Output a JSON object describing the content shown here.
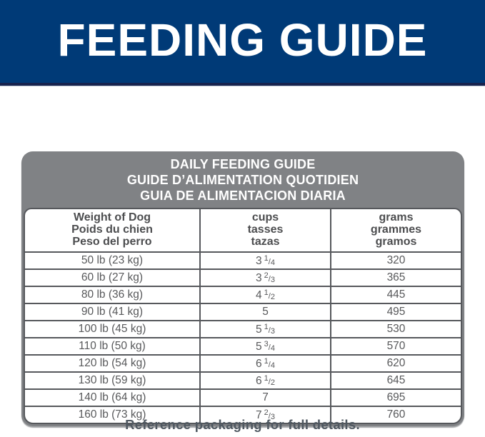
{
  "banner": {
    "title": "FEEDING GUIDE"
  },
  "table": {
    "title_lines": {
      "en": "DAILY FEEDING GUIDE",
      "fr": "GUIDE D’ALIMENTATION QUOTIDIEN",
      "es": "GUIA DE ALIMENTACION DIARIA"
    },
    "columns": [
      {
        "lines": [
          "Weight of Dog",
          "Poids du chien",
          "Peso del perro"
        ]
      },
      {
        "lines": [
          "cups",
          "tasses",
          "tazas"
        ]
      },
      {
        "lines": [
          "grams",
          "grammes",
          "gramos"
        ]
      }
    ],
    "rows": [
      {
        "weight": "50 lb (23 kg)",
        "cups": {
          "whole": "3",
          "num": "1",
          "den": "4"
        },
        "grams": "320"
      },
      {
        "weight": "60 lb (27 kg)",
        "cups": {
          "whole": "3",
          "num": "2",
          "den": "3"
        },
        "grams": "365"
      },
      {
        "weight": "80 lb (36 kg)",
        "cups": {
          "whole": "4",
          "num": "1",
          "den": "2"
        },
        "grams": "445"
      },
      {
        "weight": "90 lb (41 kg)",
        "cups": {
          "whole": "5"
        },
        "grams": "495"
      },
      {
        "weight": "100 lb (45 kg)",
        "cups": {
          "whole": "5",
          "num": "1",
          "den": "3"
        },
        "grams": "530"
      },
      {
        "weight": "110 lb (50 kg)",
        "cups": {
          "whole": "5",
          "num": "3",
          "den": "4"
        },
        "grams": "570"
      },
      {
        "weight": "120 lb (54 kg)",
        "cups": {
          "whole": "6",
          "num": "1",
          "den": "4"
        },
        "grams": "620"
      },
      {
        "weight": "130 lb (59 kg)",
        "cups": {
          "whole": "6",
          "num": "1",
          "den": "2"
        },
        "grams": "645"
      },
      {
        "weight": "140 lb (64 kg)",
        "cups": {
          "whole": "7"
        },
        "grams": "695"
      },
      {
        "weight": "160 lb (73 kg)",
        "cups": {
          "whole": "7",
          "num": "2",
          "den": "3"
        },
        "grams": "760"
      }
    ]
  },
  "footer": {
    "note": "Reference packaging for full details."
  },
  "colors": {
    "banner_bg": "#003a77",
    "banner_edge": "#17234e",
    "header_gray": "#808285",
    "table_border": "#56585c",
    "header_text": "#4c4d4f",
    "data_text": "#58595b",
    "footer_text": "#4f5861"
  }
}
